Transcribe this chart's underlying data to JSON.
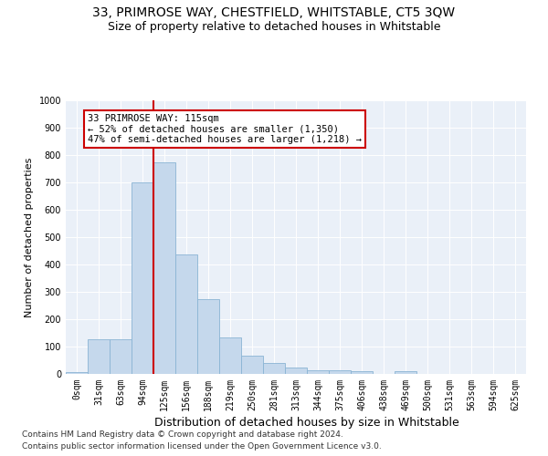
{
  "title1": "33, PRIMROSE WAY, CHESTFIELD, WHITSTABLE, CT5 3QW",
  "title2": "Size of property relative to detached houses in Whitstable",
  "xlabel": "Distribution of detached houses by size in Whitstable",
  "ylabel": "Number of detached properties",
  "bar_labels": [
    "0sqm",
    "31sqm",
    "63sqm",
    "94sqm",
    "125sqm",
    "156sqm",
    "188sqm",
    "219sqm",
    "250sqm",
    "281sqm",
    "313sqm",
    "344sqm",
    "375sqm",
    "406sqm",
    "438sqm",
    "469sqm",
    "500sqm",
    "531sqm",
    "563sqm",
    "594sqm",
    "625sqm"
  ],
  "bar_values": [
    7,
    127,
    127,
    700,
    775,
    438,
    275,
    132,
    68,
    40,
    25,
    15,
    12,
    10,
    0,
    10,
    0,
    0,
    0,
    0,
    0
  ],
  "bar_color": "#c5d8ec",
  "bar_edge_color": "#8ab4d4",
  "vline_color": "#cc0000",
  "annotation_text": "33 PRIMROSE WAY: 115sqm\n← 52% of detached houses are smaller (1,350)\n47% of semi-detached houses are larger (1,218) →",
  "ylim": [
    0,
    1000
  ],
  "yticks": [
    0,
    100,
    200,
    300,
    400,
    500,
    600,
    700,
    800,
    900,
    1000
  ],
  "bg_color": "#eaf0f8",
  "grid_color": "#ffffff",
  "footnote1": "Contains HM Land Registry data © Crown copyright and database right 2024.",
  "footnote2": "Contains public sector information licensed under the Open Government Licence v3.0.",
  "title1_fontsize": 10,
  "title2_fontsize": 9,
  "xlabel_fontsize": 9,
  "ylabel_fontsize": 8,
  "tick_fontsize": 7,
  "annot_fontsize": 7.5,
  "footnote_fontsize": 6.5
}
